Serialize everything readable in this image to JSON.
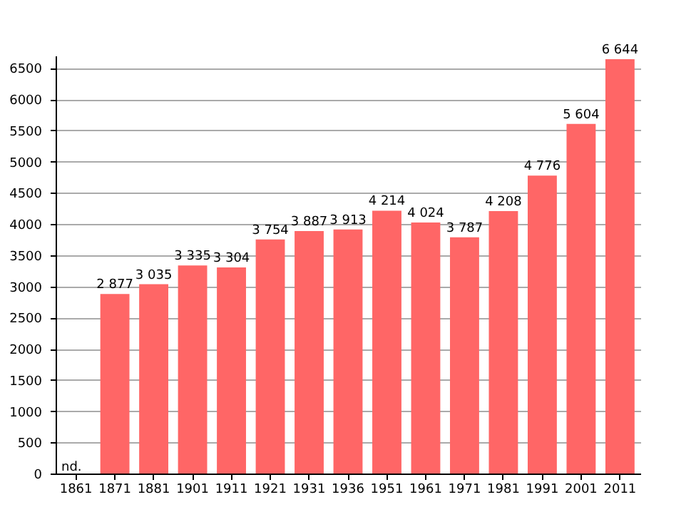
{
  "chart_data": {
    "type": "bar",
    "categories": [
      "1861",
      "1871",
      "1881",
      "1901",
      "1911",
      "1921",
      "1931",
      "1936",
      "1951",
      "1961",
      "1971",
      "1981",
      "1991",
      "2001",
      "2011"
    ],
    "values": [
      null,
      2877,
      3035,
      3335,
      3304,
      3754,
      3887,
      3913,
      4214,
      4024,
      3787,
      4208,
      4776,
      5604,
      6644
    ],
    "value_labels": [
      null,
      "2 877",
      "3 035",
      "3 335",
      "3 304",
      "3 754",
      "3 887",
      "3 913",
      "4 214",
      "4 024",
      "3 787",
      "4 208",
      "4 776",
      "5 604",
      "6 644"
    ],
    "color": "#ff6666",
    "ylim": [
      0,
      6700
    ],
    "yticks": [
      0,
      500,
      1000,
      1500,
      2000,
      2500,
      3000,
      3500,
      4000,
      4500,
      5000,
      5500,
      6000,
      6500
    ],
    "grid": "y",
    "annotations": [
      "nd."
    ]
  }
}
